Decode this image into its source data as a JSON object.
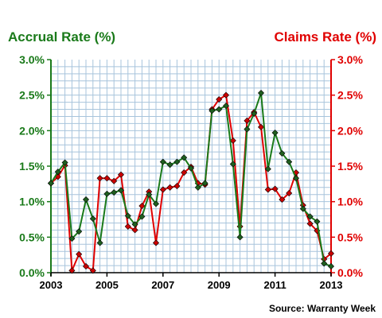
{
  "chart_data": {
    "type": "line",
    "left_axis_title": "Accrual Rate (%)",
    "right_axis_title": "Claims Rate (%)",
    "source": "Source: Warranty Week",
    "y_ticks": [
      "0.0%",
      "0.5%",
      "1.0%",
      "1.5%",
      "2.0%",
      "2.5%",
      "3.0%"
    ],
    "x_ticks": [
      2003,
      2005,
      2007,
      2009,
      2011,
      2013
    ],
    "x_tick_labels": [
      "2003",
      "2005",
      "2007",
      "2009",
      "2011",
      "2013"
    ],
    "xlim": [
      2003,
      2013
    ],
    "ylim": [
      0,
      3.0
    ],
    "grid": true,
    "series": [
      {
        "name": "Accrual Rate (%)",
        "color": "#1a7a1a",
        "marker_color": "#1f5f1f",
        "points": [
          [
            2003.0,
            1.26
          ],
          [
            2003.25,
            1.42
          ],
          [
            2003.5,
            1.55
          ],
          [
            2003.75,
            0.48
          ],
          [
            2004.0,
            0.58
          ],
          [
            2004.25,
            1.03
          ],
          [
            2004.5,
            0.76
          ],
          [
            2004.75,
            0.42
          ],
          [
            2005.0,
            1.11
          ],
          [
            2005.25,
            1.13
          ],
          [
            2005.5,
            1.16
          ],
          [
            2005.75,
            0.8
          ],
          [
            2006.0,
            0.68
          ],
          [
            2006.25,
            0.79
          ],
          [
            2006.5,
            1.1
          ],
          [
            2006.75,
            0.97
          ],
          [
            2007.0,
            1.56
          ],
          [
            2007.25,
            1.52
          ],
          [
            2007.5,
            1.56
          ],
          [
            2007.75,
            1.62
          ],
          [
            2008.0,
            1.47
          ],
          [
            2008.25,
            1.2
          ],
          [
            2008.5,
            1.26
          ],
          [
            2008.75,
            2.28
          ],
          [
            2009.0,
            2.3
          ],
          [
            2009.25,
            2.35
          ],
          [
            2009.5,
            1.53
          ],
          [
            2009.75,
            0.5
          ],
          [
            2010.0,
            2.02
          ],
          [
            2010.25,
            2.24
          ],
          [
            2010.5,
            2.53
          ],
          [
            2010.75,
            1.46
          ],
          [
            2011.0,
            1.97
          ],
          [
            2011.25,
            1.68
          ],
          [
            2011.5,
            1.56
          ],
          [
            2011.75,
            1.33
          ],
          [
            2012.0,
            0.9
          ],
          [
            2012.25,
            0.79
          ],
          [
            2012.5,
            0.72
          ],
          [
            2012.75,
            0.13
          ],
          [
            2013.0,
            0.09
          ]
        ]
      },
      {
        "name": "Claims Rate (%)",
        "color": "#e00000",
        "marker_color": "#cc0000",
        "points": [
          [
            2003.0,
            1.26
          ],
          [
            2003.25,
            1.35
          ],
          [
            2003.5,
            1.51
          ],
          [
            2003.75,
            0.03
          ],
          [
            2004.0,
            0.26
          ],
          [
            2004.25,
            0.09
          ],
          [
            2004.5,
            0.03
          ],
          [
            2004.75,
            1.33
          ],
          [
            2005.0,
            1.33
          ],
          [
            2005.25,
            1.29
          ],
          [
            2005.5,
            1.38
          ],
          [
            2005.75,
            0.65
          ],
          [
            2006.0,
            0.6
          ],
          [
            2006.25,
            0.94
          ],
          [
            2006.5,
            1.14
          ],
          [
            2006.75,
            0.42
          ],
          [
            2007.0,
            1.17
          ],
          [
            2007.25,
            1.2
          ],
          [
            2007.5,
            1.22
          ],
          [
            2007.75,
            1.41
          ],
          [
            2008.0,
            1.49
          ],
          [
            2008.25,
            1.26
          ],
          [
            2008.5,
            1.24
          ],
          [
            2008.75,
            2.3
          ],
          [
            2009.0,
            2.44
          ],
          [
            2009.25,
            2.5
          ],
          [
            2009.5,
            1.86
          ],
          [
            2009.75,
            0.65
          ],
          [
            2010.0,
            2.14
          ],
          [
            2010.25,
            2.26
          ],
          [
            2010.5,
            2.05
          ],
          [
            2010.75,
            1.17
          ],
          [
            2011.0,
            1.18
          ],
          [
            2011.25,
            1.03
          ],
          [
            2011.5,
            1.12
          ],
          [
            2011.75,
            1.41
          ],
          [
            2012.0,
            0.95
          ],
          [
            2012.25,
            0.69
          ],
          [
            2012.5,
            0.59
          ],
          [
            2012.75,
            0.19
          ],
          [
            2013.0,
            0.27
          ]
        ]
      }
    ],
    "left_axis_color": "#1a7a1a",
    "right_axis_color": "#e00000"
  }
}
